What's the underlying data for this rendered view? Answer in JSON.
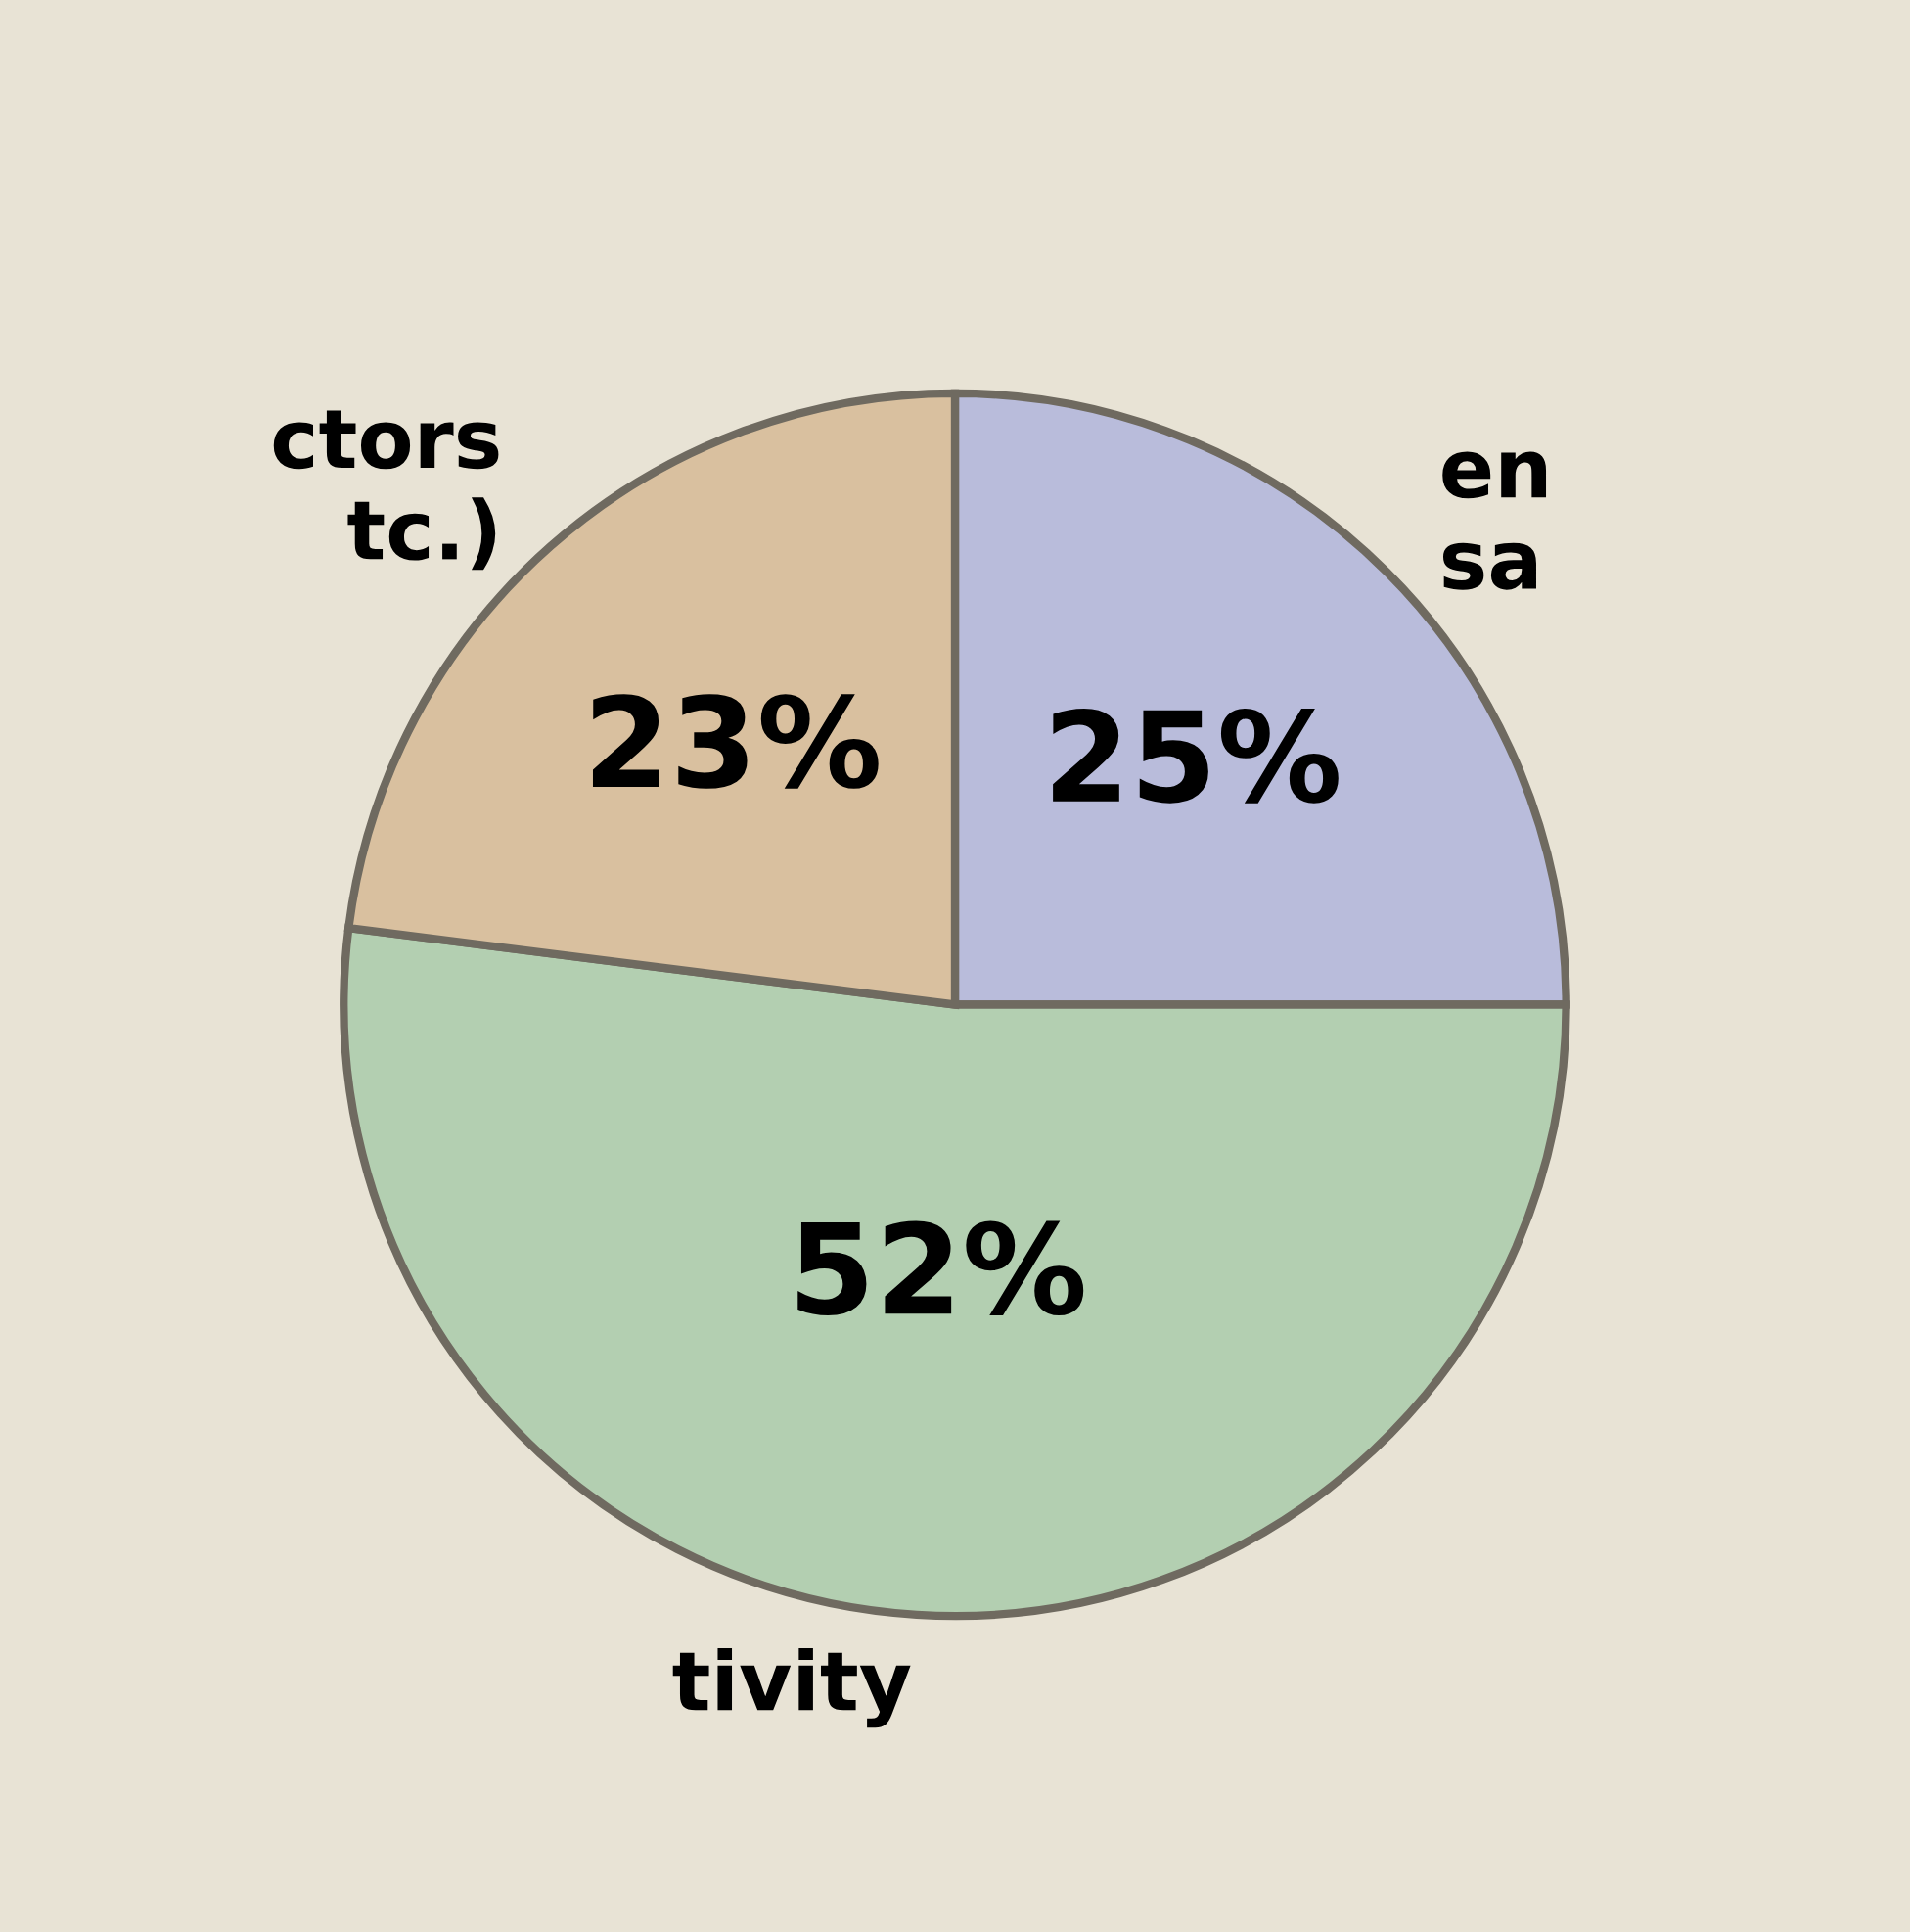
{
  "chart_data": {
    "type": "pie",
    "categories": [
      "en\nsa",
      "tivity",
      "ctors\ntc.)"
    ],
    "values": [
      25,
      52,
      23
    ],
    "colors": [
      "#b9bcdb",
      "#b3cfb1",
      "#d9c09f"
    ],
    "value_labels": [
      "25%",
      "52%",
      "23%"
    ]
  }
}
